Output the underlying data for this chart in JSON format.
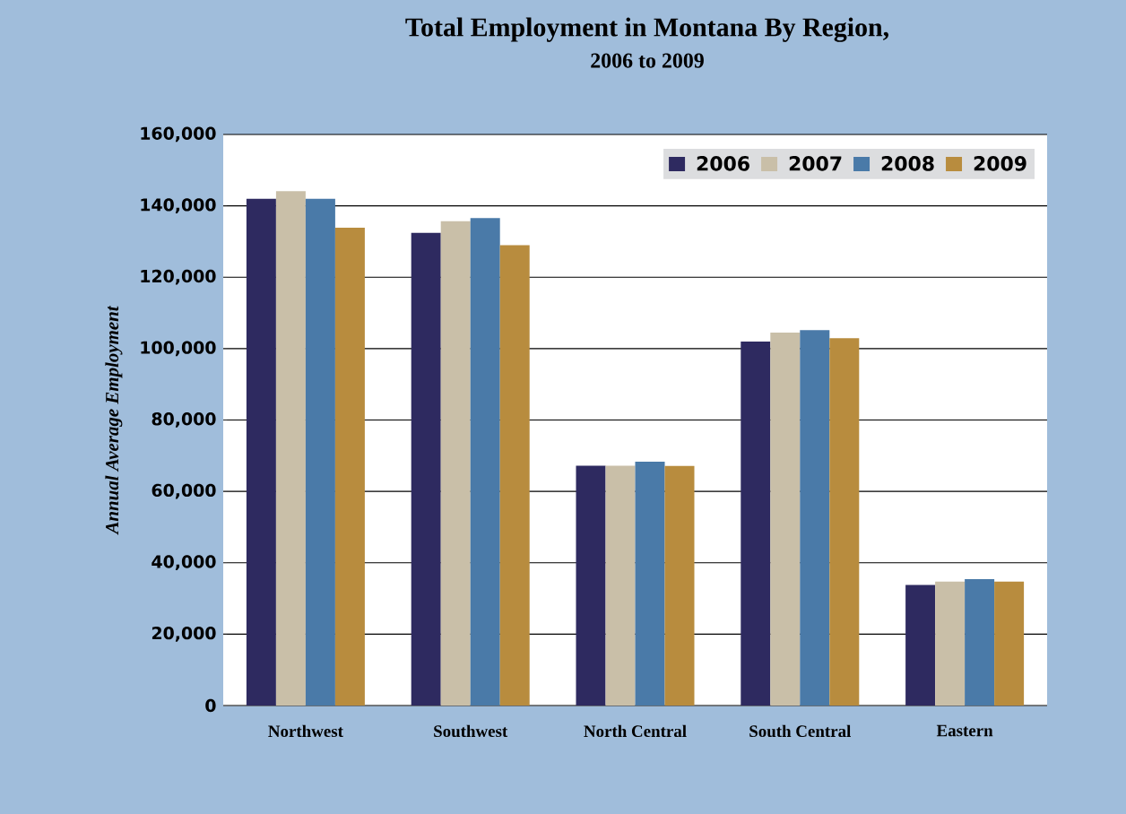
{
  "chart_data": {
    "type": "bar",
    "title": "Total Employment in Montana By Region,",
    "subtitle": "2006 to 2009",
    "ylabel": "Annual Average Employment",
    "categories": [
      "Northwest",
      "Southwest",
      "North Central",
      "South Central",
      "Eastern"
    ],
    "series": [
      {
        "name": "2006",
        "color": "#2e2a60",
        "values": [
          142000,
          132400,
          67200,
          102000,
          33800
        ]
      },
      {
        "name": "2007",
        "color": "#c9bfa8",
        "values": [
          144100,
          135700,
          67200,
          104500,
          34700
        ]
      },
      {
        "name": "2008",
        "color": "#4a7aa8",
        "values": [
          142000,
          136600,
          68300,
          105200,
          35400
        ]
      },
      {
        "name": "2009",
        "color": "#b88c3e",
        "values": [
          133900,
          129000,
          67100,
          102900,
          34700
        ]
      }
    ],
    "ylim": [
      0,
      160000
    ],
    "yticks": [
      {
        "value": 0,
        "label": "0"
      },
      {
        "value": 20000,
        "label": "20,000"
      },
      {
        "value": 40000,
        "label": "40,000"
      },
      {
        "value": 60000,
        "label": "60,000"
      },
      {
        "value": 80000,
        "label": "80,000"
      },
      {
        "value": 100000,
        "label": "100,000"
      },
      {
        "value": 120000,
        "label": "120,000"
      },
      {
        "value": 140000,
        "label": "140,000"
      },
      {
        "value": 160000,
        "label": "160,000"
      }
    ],
    "grid": "y",
    "legend": "top right"
  }
}
